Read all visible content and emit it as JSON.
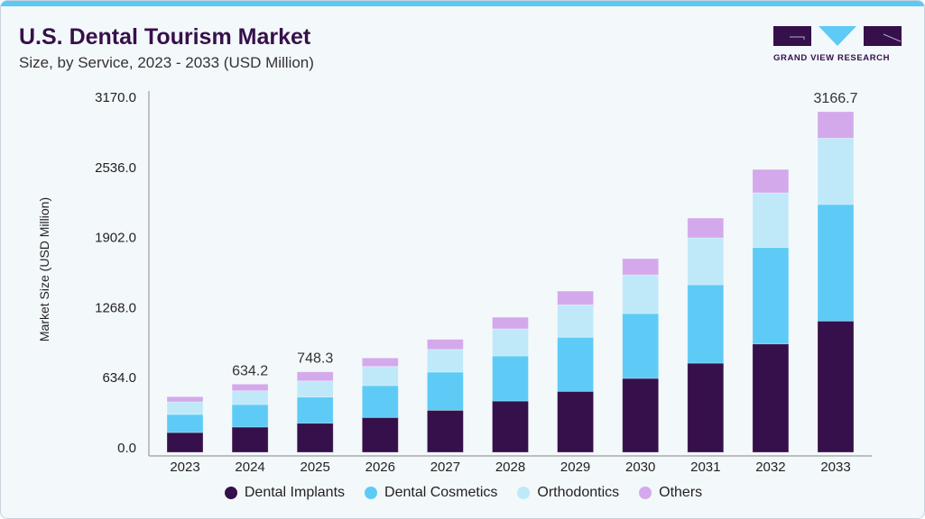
{
  "header": {
    "title": "U.S. Dental Tourism Market",
    "subtitle": "Size, by Service, 2023 - 2033 (USD Million)"
  },
  "logo": {
    "text": "GRAND VIEW RESEARCH"
  },
  "chart_data": {
    "type": "bar",
    "stacked": true,
    "ylabel": "Market Size (USD Million)",
    "xlabel": "",
    "ylim": [
      0,
      3170
    ],
    "yticks": [
      "0.0",
      "634.0",
      "1268.0",
      "1902.0",
      "2536.0",
      "3170.0"
    ],
    "grid": false,
    "legend_position": "bottom",
    "categories": [
      "2023",
      "2024",
      "2025",
      "2026",
      "2027",
      "2028",
      "2029",
      "2030",
      "2031",
      "2032",
      "2033"
    ],
    "series": [
      {
        "name": "Dental Implants",
        "color": "#36104a",
        "values": [
          184,
          235,
          271,
          324,
          391,
          477,
          567,
          687,
          829,
          1008,
          1221
        ]
      },
      {
        "name": "Dental Cosmetics",
        "color": "#5ecbf6",
        "values": [
          168,
          209,
          243,
          296,
          355,
          419,
          503,
          603,
          729,
          896,
          1083
        ]
      },
      {
        "name": "Orthodontics",
        "color": "#bfe9f9",
        "values": [
          117,
          128,
          150,
          178,
          211,
          252,
          301,
          360,
          436,
          509,
          617
        ]
      },
      {
        "name": "Others",
        "color": "#d4a9ec",
        "values": [
          48,
          62,
          84,
          79,
          93,
          108,
          128,
          151,
          184,
          217,
          246
        ]
      }
    ],
    "data_labels": [
      {
        "category": "2024",
        "text": "634.2"
      },
      {
        "category": "2025",
        "text": "748.3"
      },
      {
        "category": "2033",
        "text": "3166.7"
      }
    ]
  }
}
